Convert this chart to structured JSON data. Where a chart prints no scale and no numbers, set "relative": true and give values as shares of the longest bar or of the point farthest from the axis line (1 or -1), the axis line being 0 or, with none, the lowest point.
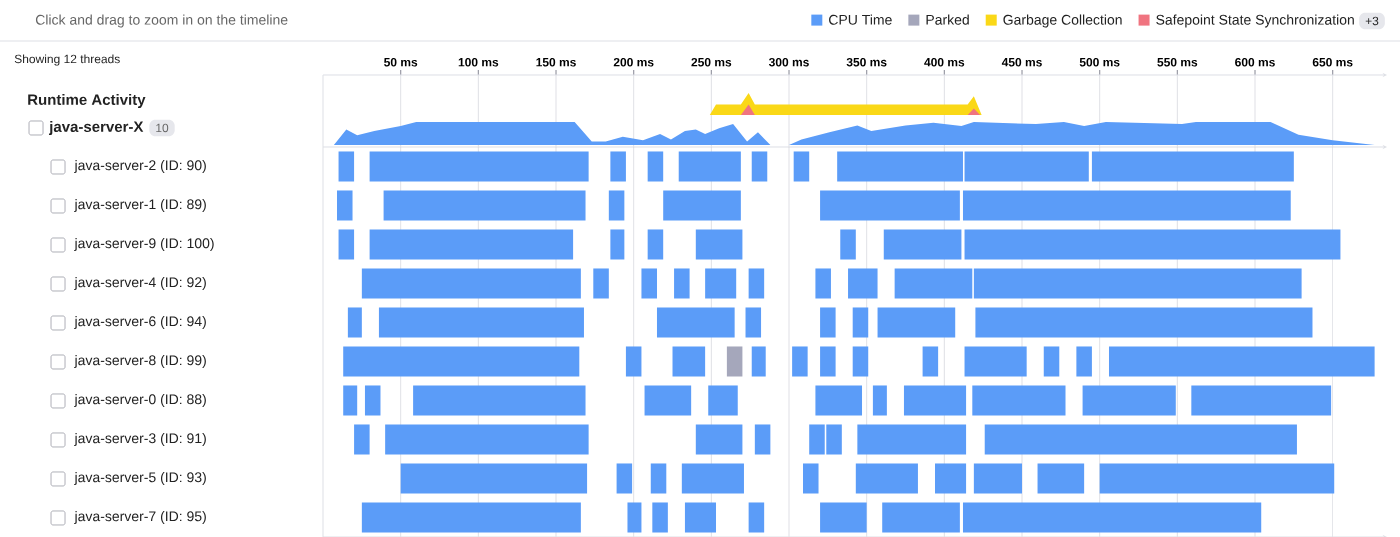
{
  "chart_data": [
    {
      "type": "area",
      "ylabel": "Runtime Activity",
      "relative": true,
      "legend": "top right",
      "grid": "x",
      "tick_labels": "x",
      "xlim": [
        0,
        685
      ],
      "xticks": [
        {
          "value": 50,
          "label": "50 ms"
        },
        {
          "value": 100,
          "label": "100 ms"
        },
        {
          "value": 150,
          "label": "150 ms"
        },
        {
          "value": 200,
          "label": "200 ms"
        },
        {
          "value": 250,
          "label": "250 ms"
        },
        {
          "value": 300,
          "label": "300 ms"
        },
        {
          "value": 350,
          "label": "350 ms"
        },
        {
          "value": 400,
          "label": "400 ms"
        },
        {
          "value": 450,
          "label": "450 ms"
        },
        {
          "value": 500,
          "label": "500 ms"
        },
        {
          "value": 550,
          "label": "550 ms"
        },
        {
          "value": 600,
          "label": "600 ms"
        },
        {
          "value": 650,
          "label": "650 ms"
        }
      ],
      "annotations": [
        "Click and drag to zoom in on the timeline",
        "Showing 12 threads",
        "+3"
      ],
      "series": [
        {
          "name": "Garbage Collection",
          "color": "#fad817",
          "x": [
            249,
            253,
            269,
            274,
            278,
            415,
            419,
            424
          ],
          "values": [
            0,
            0.48,
            0.48,
            1,
            0.48,
            0.48,
            0.85,
            0
          ]
        },
        {
          "name": "Safepoint State Synchronization",
          "color": "#f07480",
          "x": [
            269,
            274,
            278,
            415,
            419,
            423
          ],
          "values": [
            0,
            0.48,
            0,
            0,
            0.3,
            0
          ]
        }
      ]
    },
    {
      "type": "area",
      "ylabel": "java-server-X",
      "relative": true,
      "grid": "x",
      "tick_labels": false,
      "xlim": [
        0,
        685
      ],
      "xticks": [
        50,
        100,
        150,
        200,
        250,
        300,
        350,
        400,
        450,
        500,
        550,
        600,
        650
      ],
      "annotations": [
        "10"
      ],
      "series": [
        {
          "color": "#5b9cf8",
          "x": [
            7,
            15,
            22,
            33,
            50,
            60,
            162,
            173,
            182,
            193,
            206,
            217,
            224,
            233,
            240,
            246,
            255,
            264,
            273,
            280,
            288,
            300,
            308,
            326,
            344,
            353,
            375,
            393,
            411,
            419,
            459,
            477,
            490,
            504,
            553,
            562,
            610,
            628,
            650,
            677
          ],
          "values": [
            0,
            0.67,
            0.42,
            0.61,
            0.82,
            1,
            1,
            0.15,
            0.15,
            0.36,
            0.21,
            0.48,
            0.24,
            0.61,
            0.67,
            0.48,
            0.73,
            0.91,
            0.15,
            0.55,
            0,
            0,
            0.24,
            0.55,
            0.85,
            0.61,
            0.85,
            0.97,
            0.82,
            1,
            0.91,
            1,
            0.82,
            1,
            0.91,
            1,
            1,
            0.45,
            0.21,
            0
          ]
        }
      ]
    },
    {
      "type": "bar",
      "orientation": "horizontal",
      "legend": "top right",
      "grid": "x",
      "tick_labels": "y",
      "xlim": [
        0,
        685
      ],
      "xticks": [
        50,
        100,
        150,
        200,
        250,
        300,
        350,
        400,
        450,
        500,
        550,
        600,
        650
      ],
      "categories": [
        "java-server-2 (ID: 90)",
        "java-server-1 (ID: 89)",
        "java-server-9 (ID: 100)",
        "java-server-4 (ID: 92)",
        "java-server-6 (ID: 94)",
        "java-server-8 (ID: 99)",
        "java-server-0 (ID: 88)",
        "java-server-3 (ID: 91)",
        "java-server-5 (ID: 93)",
        "java-server-7 (ID: 95)"
      ],
      "series": [
        {
          "name": "CPU Time",
          "color": "#5b9cf8",
          "base": [
            10,
            9,
            10,
            25,
            16,
            13,
            13,
            20,
            50,
            25
          ],
          "values": [
            10,
            10,
            10,
            141,
            9,
            152,
            9,
            10,
            120,
            141
          ]
        },
        {
          "color": "#5b9cf8",
          "base": [
            30,
            39,
            30,
            174,
            36,
            195,
            27,
            40,
            189,
            196
          ],
          "values": [
            141,
            130,
            131,
            10,
            132,
            10,
            10,
            131,
            10,
            9
          ]
        },
        {
          "color": "#5b9cf8",
          "base": [
            185,
            184,
            185,
            205,
            215,
            225,
            58,
            240,
            211,
            212
          ],
          "values": [
            10,
            10,
            9,
            10,
            50,
            21,
            111,
            30,
            10,
            10
          ]
        },
        {
          "color": "#5b9cf8",
          "base": [
            209,
            219,
            209,
            226,
            272,
            276,
            207,
            278,
            231,
            233
          ],
          "values": [
            10,
            50,
            10,
            10,
            10,
            9,
            30,
            10,
            40,
            20
          ]
        },
        {
          "color": "#5b9cf8",
          "base": [
            229,
            320,
            240,
            246,
            320,
            302,
            248,
            313,
            309,
            274
          ],
          "values": [
            40,
            90,
            30,
            20,
            10,
            10,
            19,
            10,
            10,
            10
          ]
        },
        {
          "color": "#5b9cf8",
          "base": [
            276,
            412,
            333,
            274,
            341,
            320,
            317,
            324,
            343,
            320
          ],
          "values": [
            10,
            211,
            10,
            10,
            10,
            10,
            30,
            10,
            40,
            30
          ]
        },
        {
          "color": "#5b9cf8",
          "base": [
            303,
            null,
            361,
            317,
            357,
            341,
            354,
            344,
            394,
            360
          ],
          "values": [
            10,
            null,
            50,
            10,
            50,
            10,
            9,
            70,
            20,
            50
          ]
        },
        {
          "color": "#5b9cf8",
          "base": [
            331,
            null,
            413,
            338,
            420,
            386,
            374,
            426,
            419,
            412
          ],
          "values": [
            81,
            null,
            242,
            19,
            217,
            10,
            40,
            201,
            31,
            192
          ]
        },
        {
          "color": "#5b9cf8",
          "base": [
            413,
            null,
            null,
            368,
            null,
            413,
            418,
            null,
            460,
            null
          ],
          "values": [
            80,
            null,
            null,
            50,
            null,
            40,
            60,
            null,
            30,
            null
          ]
        },
        {
          "color": "#5b9cf8",
          "base": [
            495,
            null,
            null,
            419,
            null,
            464,
            489,
            null,
            500,
            null
          ],
          "values": [
            130,
            null,
            null,
            211,
            null,
            10,
            60,
            null,
            151,
            null
          ]
        },
        {
          "color": "#5b9cf8",
          "base": [
            null,
            null,
            null,
            null,
            null,
            485,
            559,
            null,
            null,
            null
          ],
          "values": [
            null,
            null,
            null,
            null,
            null,
            10,
            90,
            null,
            null,
            null
          ]
        },
        {
          "color": "#5b9cf8",
          "base": [
            null,
            null,
            null,
            null,
            null,
            506,
            null,
            null,
            null,
            null
          ],
          "values": [
            null,
            null,
            null,
            null,
            null,
            171,
            null,
            null,
            null,
            null
          ]
        },
        {
          "name": "Parked",
          "color": "#a5a7bb",
          "base": [
            null,
            null,
            null,
            null,
            null,
            260,
            null,
            null,
            null,
            null
          ],
          "values": [
            null,
            null,
            null,
            null,
            null,
            10,
            null,
            null,
            null,
            null
          ]
        }
      ]
    }
  ]
}
